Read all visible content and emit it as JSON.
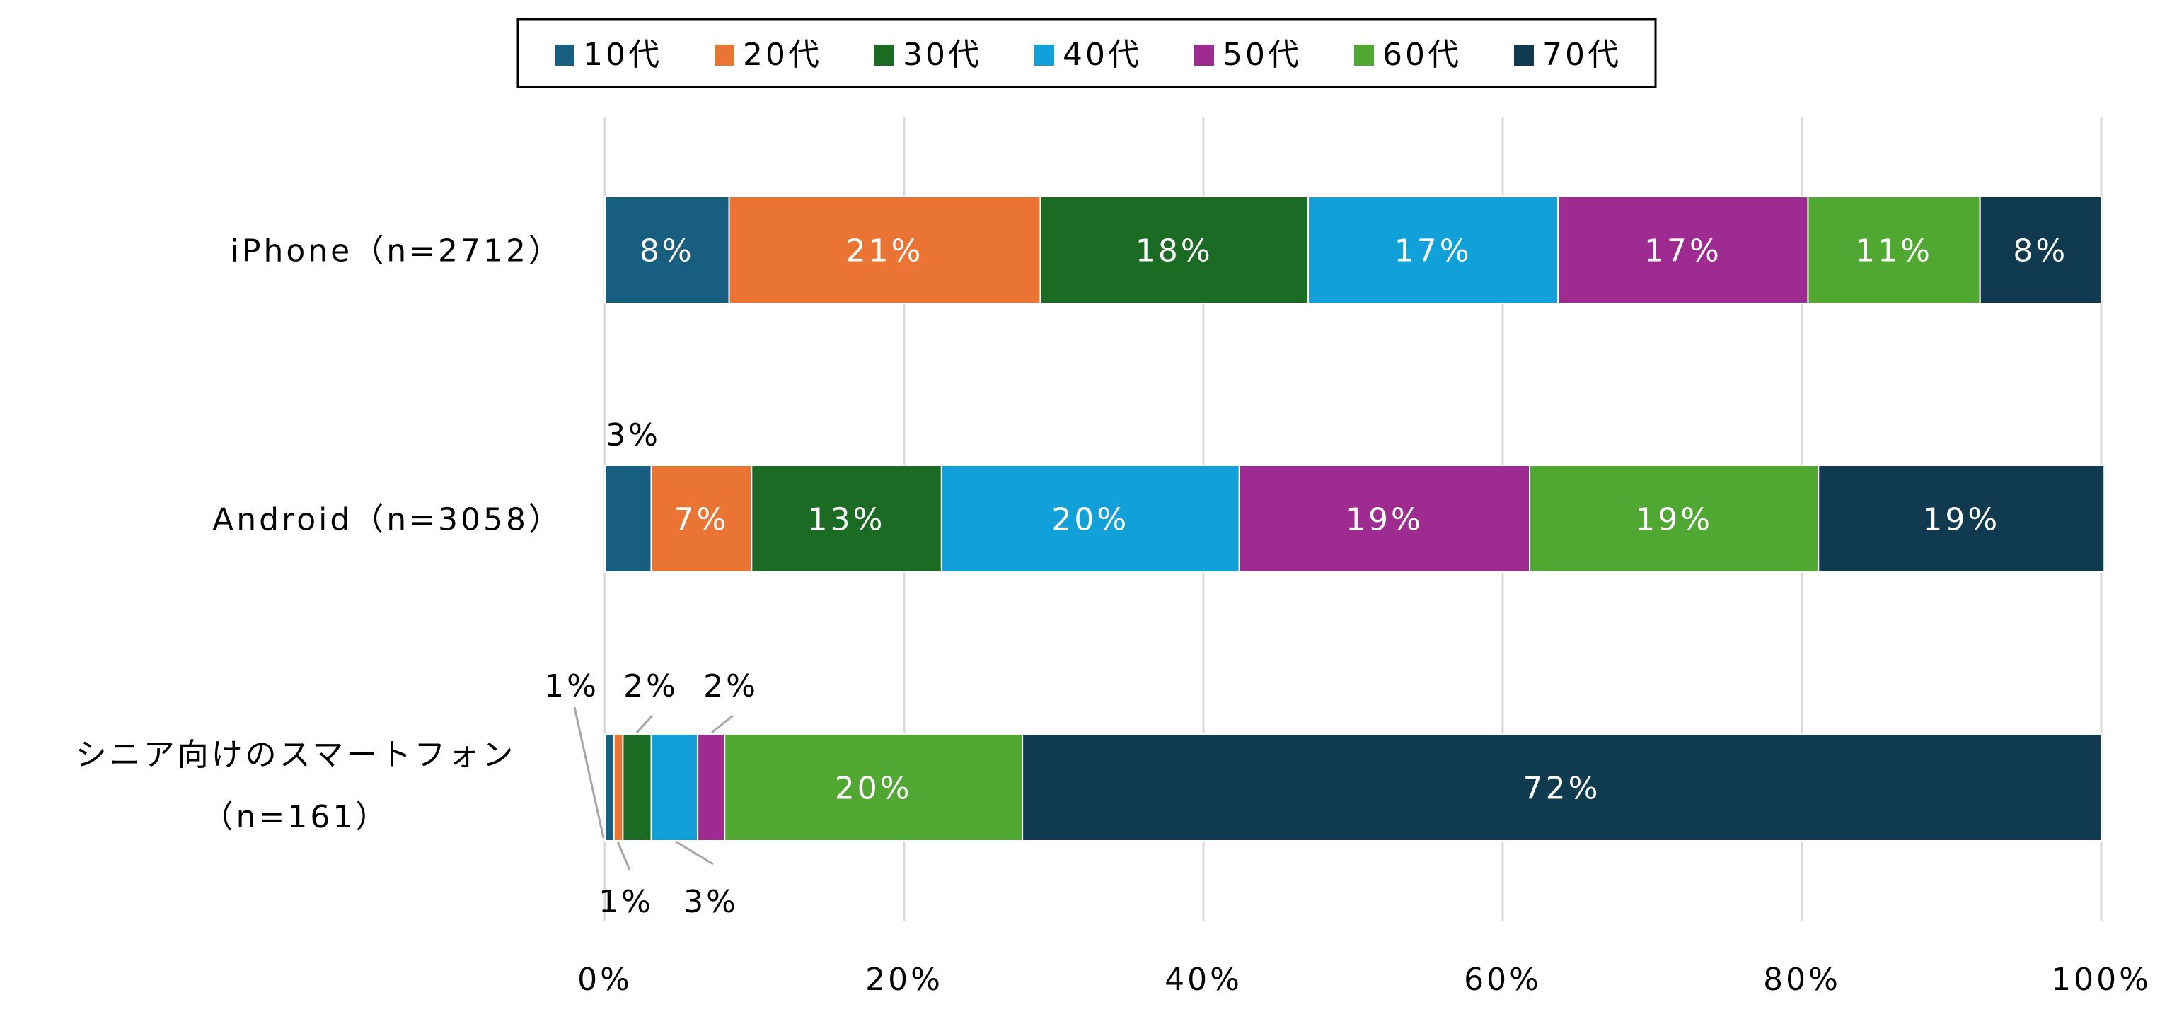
{
  "chart_data": {
    "type": "bar",
    "orientation": "horizontal",
    "stacked": "percent",
    "title": "",
    "xlabel": "",
    "ylabel": "",
    "xlim": [
      0,
      100
    ],
    "x_ticks": [
      "0%",
      "20%",
      "40%",
      "60%",
      "80%",
      "100%"
    ],
    "grid": "vertical",
    "legend_position": "top",
    "categories": [
      {
        "line1": "iPhone（n=2712）",
        "line2": ""
      },
      {
        "line1": "Android（n=3058）",
        "line2": ""
      },
      {
        "line1": "シニア向けのスマートフォン",
        "line2": "（n=161）"
      }
    ],
    "series": [
      {
        "name": "10代",
        "color": "#175e80",
        "values": [
          8.3,
          3.1,
          0.6
        ],
        "labels": [
          "8%",
          "3%",
          "1%"
        ]
      },
      {
        "name": "20代",
        "color": "#ea7434",
        "values": [
          20.8,
          6.7,
          0.6
        ],
        "labels": [
          "21%",
          "7%",
          "1%"
        ]
      },
      {
        "name": "30代",
        "color": "#1b6b25",
        "values": [
          17.9,
          12.7,
          1.9
        ],
        "labels": [
          "18%",
          "13%",
          "2%"
        ]
      },
      {
        "name": "40代",
        "color": "#12a0d8",
        "values": [
          16.7,
          19.9,
          3.1
        ],
        "labels": [
          "17%",
          "20%",
          "3%"
        ]
      },
      {
        "name": "50代",
        "color": "#9e2b90",
        "values": [
          16.7,
          19.4,
          1.8
        ],
        "labels": [
          "17%",
          "19%",
          "2%"
        ]
      },
      {
        "name": "60代",
        "color": "#50a832",
        "values": [
          11.5,
          19.3,
          19.9
        ],
        "labels": [
          "11%",
          "19%",
          "20%"
        ]
      },
      {
        "name": "70代",
        "color": "#0f3a4f",
        "values": [
          8.1,
          19.1,
          72.1
        ],
        "labels": [
          "8%",
          "19%",
          "72%"
        ]
      }
    ]
  }
}
